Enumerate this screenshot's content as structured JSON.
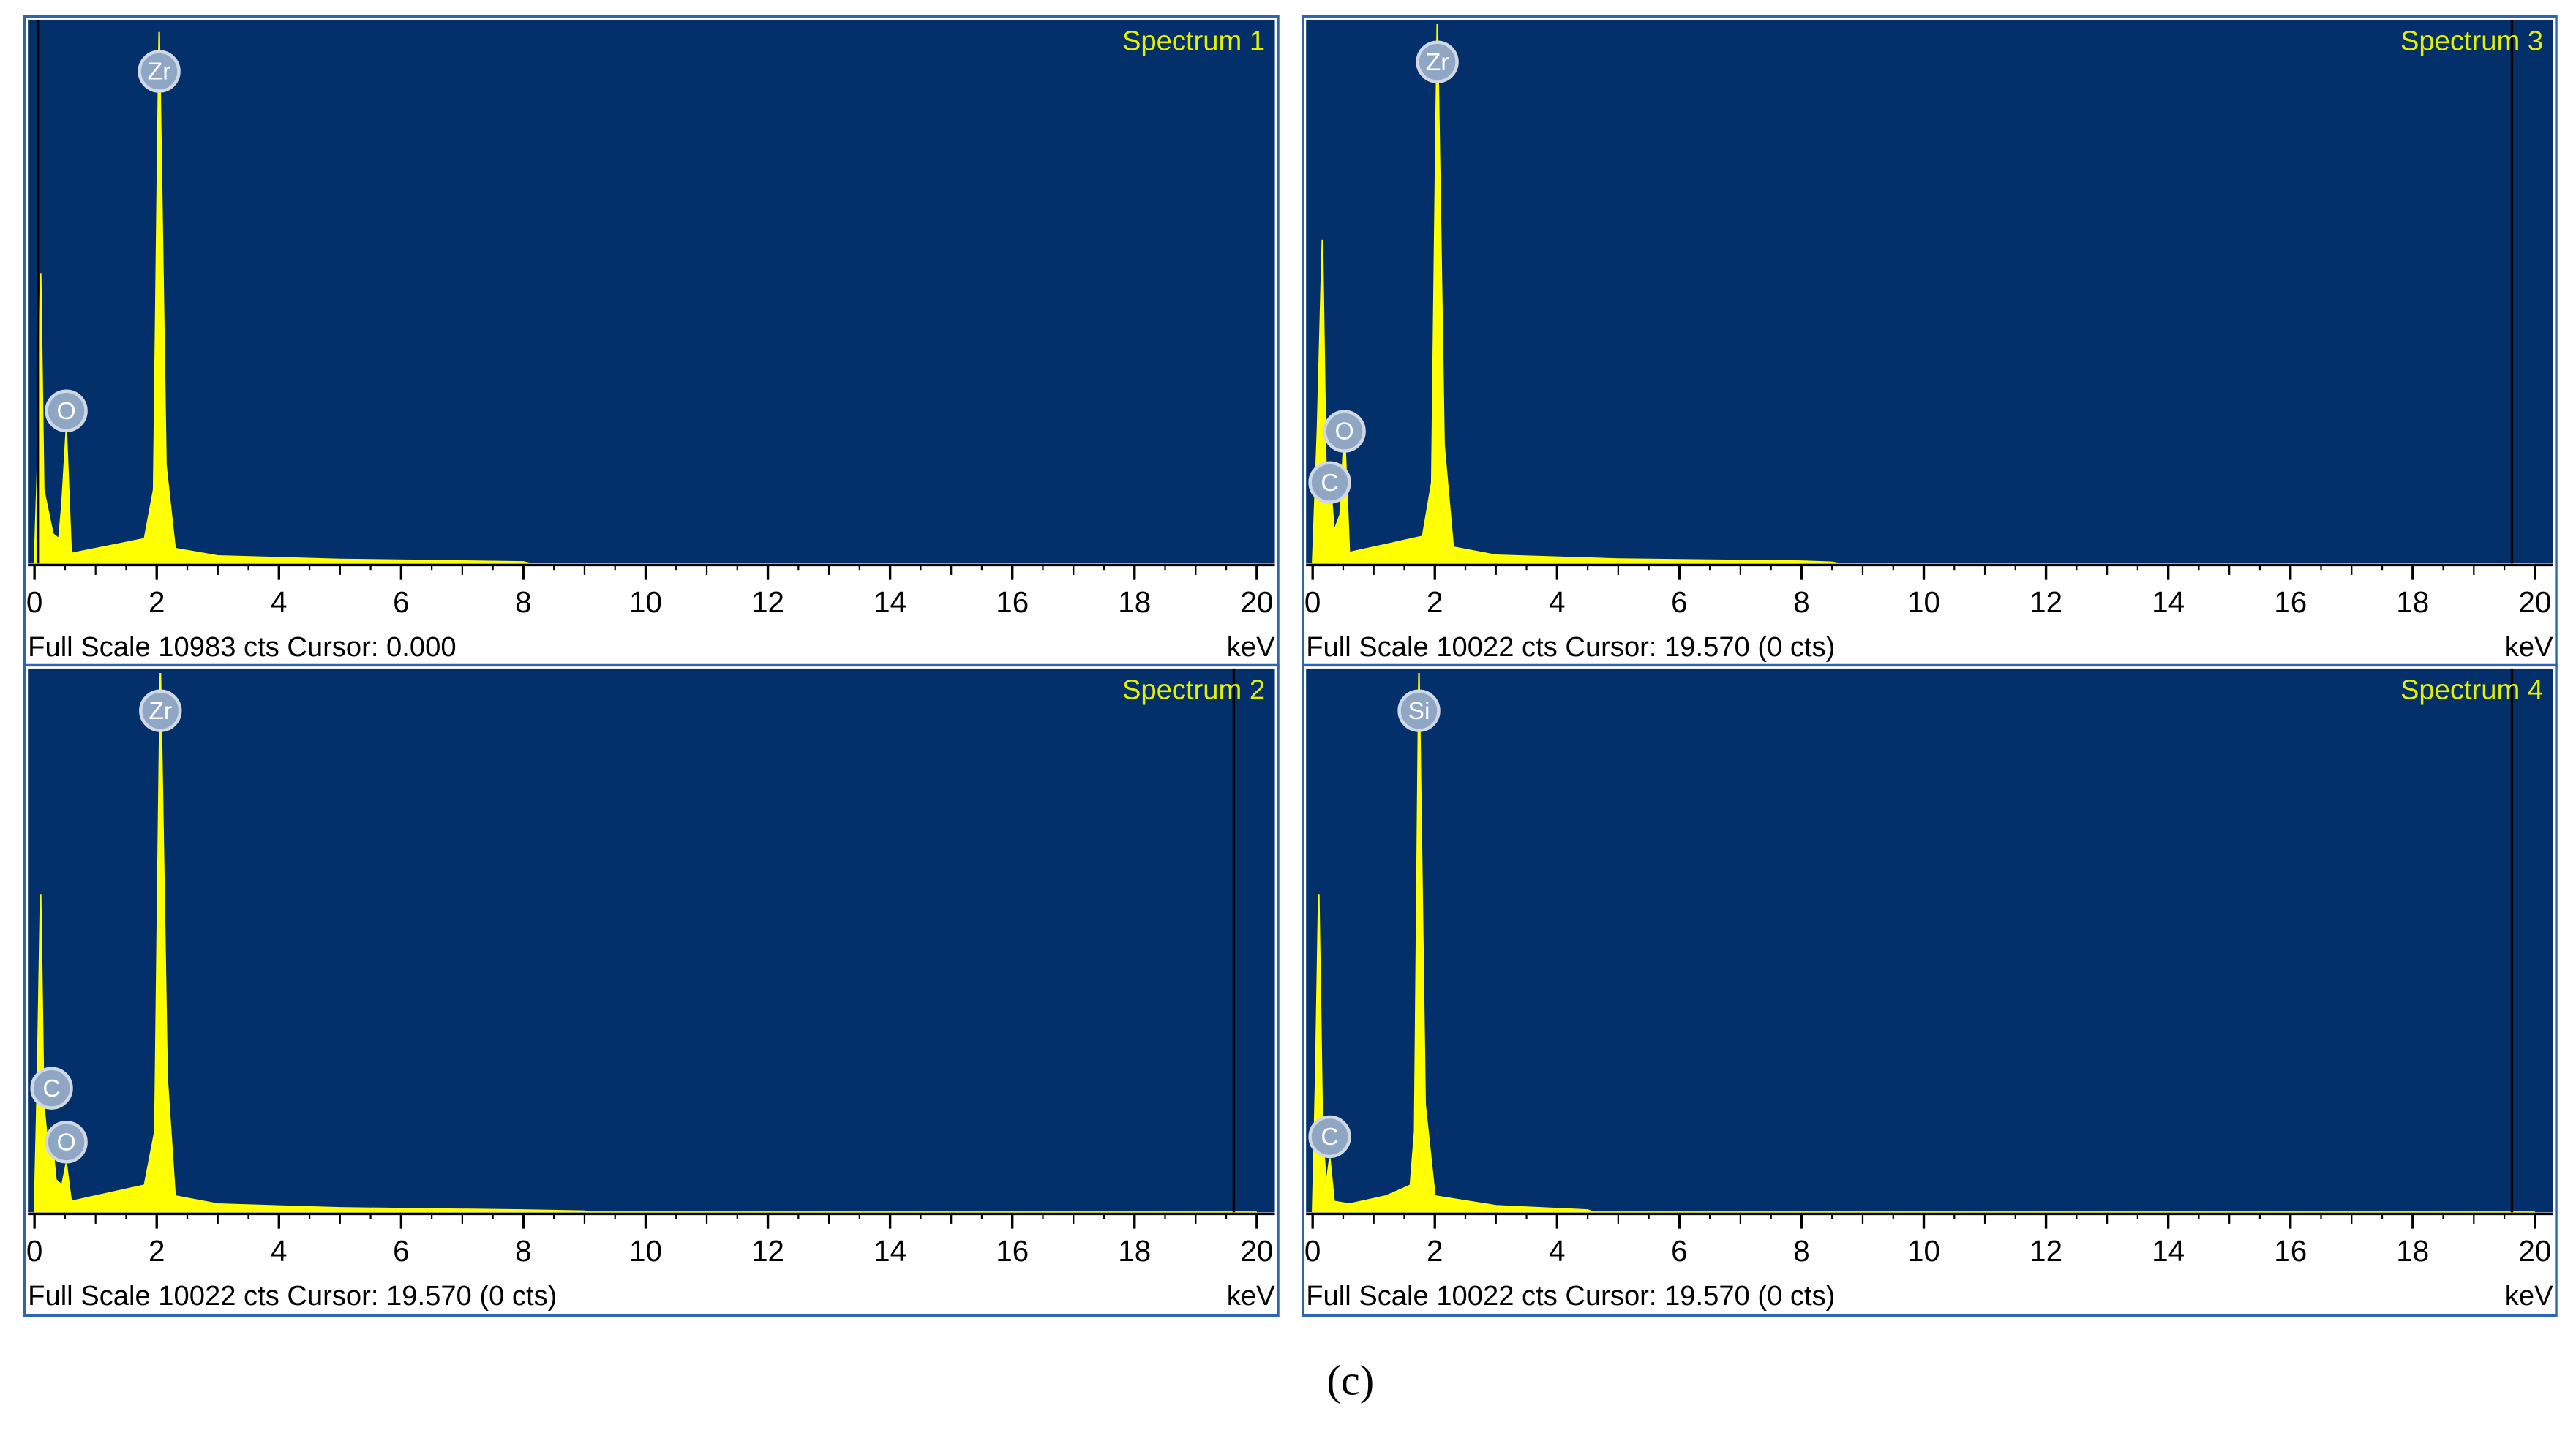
{
  "chart_data": [
    {
      "type": "area",
      "title": "Spectrum 1",
      "xlabel": "keV",
      "footer": "Full Scale 10983 cts Cursor: 0.000",
      "xlim": [
        0,
        20
      ],
      "xticks": [
        0,
        2,
        4,
        6,
        8,
        10,
        12,
        14,
        16,
        18,
        20
      ],
      "ylim": [
        0,
        10983
      ],
      "cursor": 0,
      "color": "#ffff00",
      "x": [
        0,
        0.05,
        0.1,
        0.15,
        0.25,
        0.3,
        0.4,
        0.45,
        0.52,
        0.6,
        0.8,
        1.2,
        1.8,
        1.95,
        2.04,
        2.15,
        2.3,
        3,
        5,
        8,
        8.1,
        20
      ],
      "values": [
        0,
        2000,
        5900,
        1500,
        900,
        600,
        500,
        1200,
        2700,
        200,
        250,
        350,
        500,
        1500,
        10800,
        2000,
        300,
        150,
        80,
        30,
        0,
        0
      ],
      "annotations": [
        {
          "text": "Zr",
          "x": 2.04,
          "y": 10000
        },
        {
          "text": "O",
          "x": 0.52,
          "y": 3100
        }
      ]
    },
    {
      "type": "area",
      "title": "Spectrum 2",
      "xlabel": "keV",
      "footer": "Full Scale 10022 cts Cursor: 19.570  (0 cts)",
      "xlim": [
        0,
        20
      ],
      "xticks": [
        0,
        2,
        4,
        6,
        8,
        10,
        12,
        14,
        16,
        18,
        20
      ],
      "ylim": [
        0,
        10022
      ],
      "cursor": 19.57,
      "color": "#ffff00",
      "x": [
        0,
        0.05,
        0.1,
        0.15,
        0.22,
        0.28,
        0.35,
        0.45,
        0.52,
        0.6,
        0.8,
        1.2,
        1.8,
        1.97,
        2.06,
        2.17,
        2.3,
        3,
        5,
        8,
        9,
        9.1,
        20
      ],
      "values": [
        0,
        2500,
        5900,
        2000,
        1200,
        1400,
        600,
        500,
        900,
        200,
        250,
        350,
        500,
        1500,
        10000,
        2500,
        300,
        150,
        80,
        40,
        20,
        0,
        0
      ],
      "annotations": [
        {
          "text": "Zr",
          "x": 2.06,
          "y": 9300
        },
        {
          "text": "C",
          "x": 0.28,
          "y": 2300
        },
        {
          "text": "O",
          "x": 0.52,
          "y": 1300
        }
      ]
    },
    {
      "type": "area",
      "title": "Spectrum 3",
      "xlabel": "keV",
      "footer": "Full Scale 10022 cts Cursor: 19.570  (0 cts)",
      "xlim": [
        0,
        20
      ],
      "xticks": [
        0,
        2,
        4,
        6,
        8,
        10,
        12,
        14,
        16,
        18,
        20
      ],
      "ylim": [
        0,
        10022
      ],
      "cursor": 19.57,
      "color": "#ffff00",
      "x": [
        0,
        0.08,
        0.16,
        0.22,
        0.28,
        0.35,
        0.45,
        0.52,
        0.6,
        0.8,
        1.2,
        1.8,
        1.95,
        2.04,
        2.15,
        2.3,
        3,
        5,
        8,
        8.5,
        8.6,
        20
      ],
      "values": [
        0,
        2500,
        6000,
        1500,
        1600,
        600,
        900,
        2450,
        200,
        250,
        350,
        500,
        1500,
        10000,
        2200,
        300,
        150,
        80,
        40,
        20,
        0,
        0
      ],
      "annotations": [
        {
          "text": "Zr",
          "x": 2.04,
          "y": 9300
        },
        {
          "text": "O",
          "x": 0.52,
          "y": 2450
        },
        {
          "text": "C",
          "x": 0.28,
          "y": 1500
        }
      ]
    },
    {
      "type": "area",
      "title": "Spectrum 4",
      "xlabel": "keV",
      "footer": "Full Scale 10022 cts Cursor: 19.570  (0 cts)",
      "xlim": [
        0,
        20
      ],
      "xticks": [
        0,
        2,
        4,
        6,
        8,
        10,
        12,
        14,
        16,
        18,
        20
      ],
      "ylim": [
        0,
        10022
      ],
      "cursor": 19.57,
      "color": "#ffff00",
      "x": [
        0,
        0.05,
        0.1,
        0.16,
        0.22,
        0.28,
        0.35,
        0.6,
        1.2,
        1.6,
        1.67,
        1.74,
        1.84,
        2,
        3,
        4.5,
        4.6,
        20
      ],
      "values": [
        0,
        2500,
        5900,
        1500,
        500,
        1000,
        200,
        150,
        300,
        500,
        1500,
        10000,
        2000,
        300,
        120,
        40,
        0,
        0
      ],
      "annotations": [
        {
          "text": "Si",
          "x": 1.74,
          "y": 9300
        },
        {
          "text": "C",
          "x": 0.28,
          "y": 1400
        }
      ]
    }
  ],
  "caption": "(c)"
}
